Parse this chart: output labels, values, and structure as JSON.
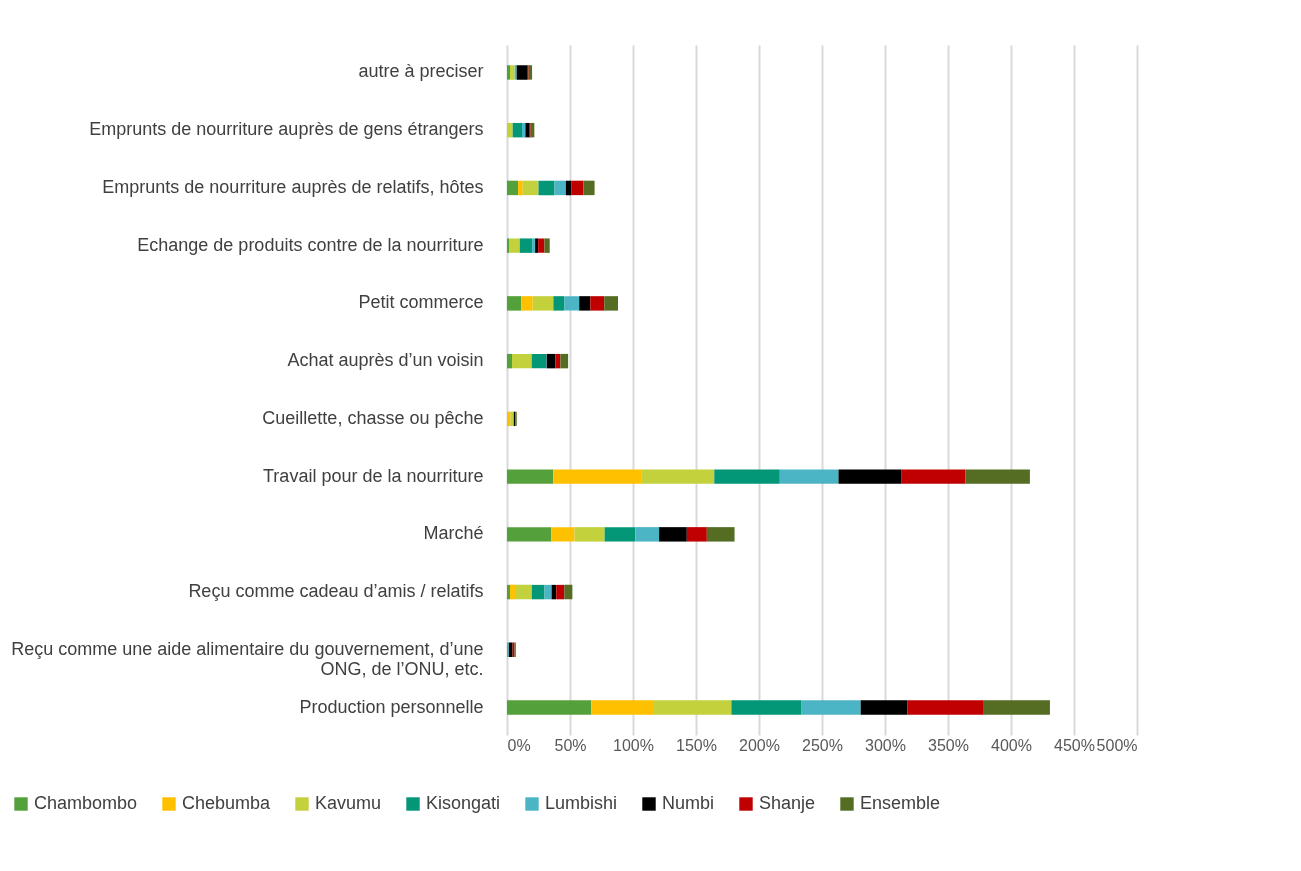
{
  "chart_data": {
    "type": "bar",
    "orientation": "horizontal",
    "stacked": true,
    "categories": [
      "autre à preciser",
      "Emprunts de nourriture auprès de gens étrangers",
      "Emprunts de nourriture auprès de relatifs, hôtes",
      "Echange de produits contre de la nourriture",
      "Petit commerce",
      "Achat auprès d’un voisin",
      "Cueillette, chasse ou pêche",
      "Travail pour de la nourriture",
      "Marché",
      "Reçu comme cadeau d’amis / relatifs",
      "Reçu comme une aide alimentaire du gouvernement, d’une ONG, de l’ONU, etc.",
      "Production personnelle"
    ],
    "series": [
      {
        "name": "Chambombo",
        "color": "#54a03a",
        "values": [
          2.4,
          0,
          8.8,
          1.6,
          11.4,
          4,
          0,
          36.6,
          35,
          2.4,
          0,
          66.8
        ]
      },
      {
        "name": "Chebumba",
        "color": "#ffc000",
        "values": [
          0,
          0,
          3.7,
          0,
          9,
          0,
          2.7,
          69.9,
          18.6,
          4,
          0,
          49.1
        ]
      },
      {
        "name": "Kavumu",
        "color": "#c3d13c",
        "values": [
          3.7,
          4.5,
          12.5,
          8.5,
          16.4,
          15.6,
          2.7,
          58,
          23.9,
          13.3,
          0,
          62.2
        ]
      },
      {
        "name": "Kisongati",
        "color": "#039677",
        "values": [
          0,
          7.4,
          12.7,
          9.8,
          8.8,
          11.4,
          0,
          52,
          24.4,
          10.1,
          0.5,
          55.7
        ]
      },
      {
        "name": "Lumbishi",
        "color": "#4bb5c5",
        "values": [
          1.6,
          2.7,
          9,
          2.4,
          11.7,
          0.5,
          0,
          46.6,
          18.8,
          5.6,
          1,
          46.9
        ]
      },
      {
        "name": "Numbi",
        "color": "#000000",
        "values": [
          8.2,
          2.9,
          4.5,
          2.4,
          8.8,
          6.9,
          1,
          49.7,
          22,
          3.7,
          2.9,
          37.2
        ]
      },
      {
        "name": "Shanje",
        "color": "#c00000",
        "values": [
          1.3,
          1.3,
          9.5,
          5,
          11.1,
          4,
          0.5,
          51.1,
          15.9,
          6.4,
          1.6,
          59.9
        ]
      },
      {
        "name": "Ensemble",
        "color": "#546d22",
        "values": [
          2.7,
          2.9,
          8.8,
          4.2,
          10.9,
          6.1,
          0.8,
          51.1,
          22,
          6.4,
          1,
          53.1
        ]
      }
    ],
    "xlim": [
      0,
      500
    ],
    "xticks": [
      {
        "value": 0,
        "label": "0%"
      },
      {
        "value": 50,
        "label": "50%"
      },
      {
        "value": 100,
        "label": "100%"
      },
      {
        "value": 150,
        "label": "150%"
      },
      {
        "value": 200,
        "label": "200%"
      },
      {
        "value": 250,
        "label": "250%"
      },
      {
        "value": 300,
        "label": "300%"
      },
      {
        "value": 350,
        "label": "350%"
      },
      {
        "value": 400,
        "label": "400%"
      },
      {
        "value": 450,
        "label": "450%"
      },
      {
        "value": 500,
        "label": "500%"
      }
    ],
    "grid": "x",
    "legend": "bottom"
  }
}
